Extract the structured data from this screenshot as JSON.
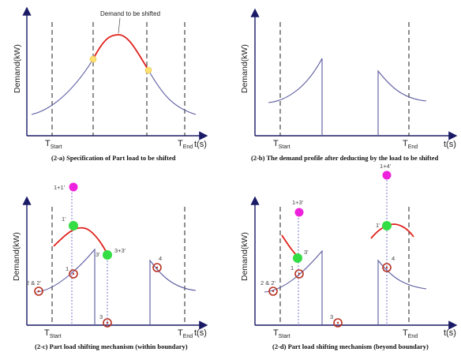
{
  "panels": {
    "a": {
      "ylabel": "Demand(kW)",
      "xlabel": "t(s)",
      "t_start": "T",
      "t_start_sub": "Start",
      "t_end": "T",
      "t_end_sub": "End",
      "annotation": "Demand to be shifted",
      "caption": "(2-a) Specification of Part load to be shifted"
    },
    "b": {
      "ylabel": "Demand(kW)",
      "xlabel": "t(s)",
      "t_start": "T",
      "t_start_sub": "Start",
      "t_end": "T",
      "t_end_sub": "End",
      "caption": "(2-b) The demand profile after deducting by the load to be shifted"
    },
    "c": {
      "ylabel": "Demand(kW)",
      "xlabel": "t(s)",
      "t_start": "T",
      "t_start_sub": "Start",
      "t_end": "T",
      "t_end_sub": "End",
      "caption": "(2-c) Part load shifting mechanism (within boundary)",
      "points": {
        "p11": "1+1'",
        "p1p": "1'",
        "p33": "3+3'",
        "p3p": "3'",
        "p1": "1",
        "p22": "2 & 2'",
        "p3": "3",
        "p4": "4"
      }
    },
    "d": {
      "ylabel": "Demand(kW)",
      "xlabel": "t(s)",
      "t_start": "T",
      "t_start_sub": "Start",
      "t_end": "T",
      "t_end_sub": "End",
      "caption": "(2-d) Part load shifting mechanism (beyond boundary)",
      "points": {
        "p33": "1+3'",
        "p3p": "3'",
        "p1": "1",
        "p22": "2 & 2'",
        "p3": "3",
        "p14": "1+4'",
        "p1p": "1'",
        "p4": "4"
      }
    }
  },
  "colors": {
    "curve": "#5a5aa0",
    "shifted": "#e0201a",
    "green_point": "#33dd44",
    "magenta_point": "#ee22dd",
    "circle_point": "#b83020",
    "marker_yellow": "#ffe070"
  }
}
